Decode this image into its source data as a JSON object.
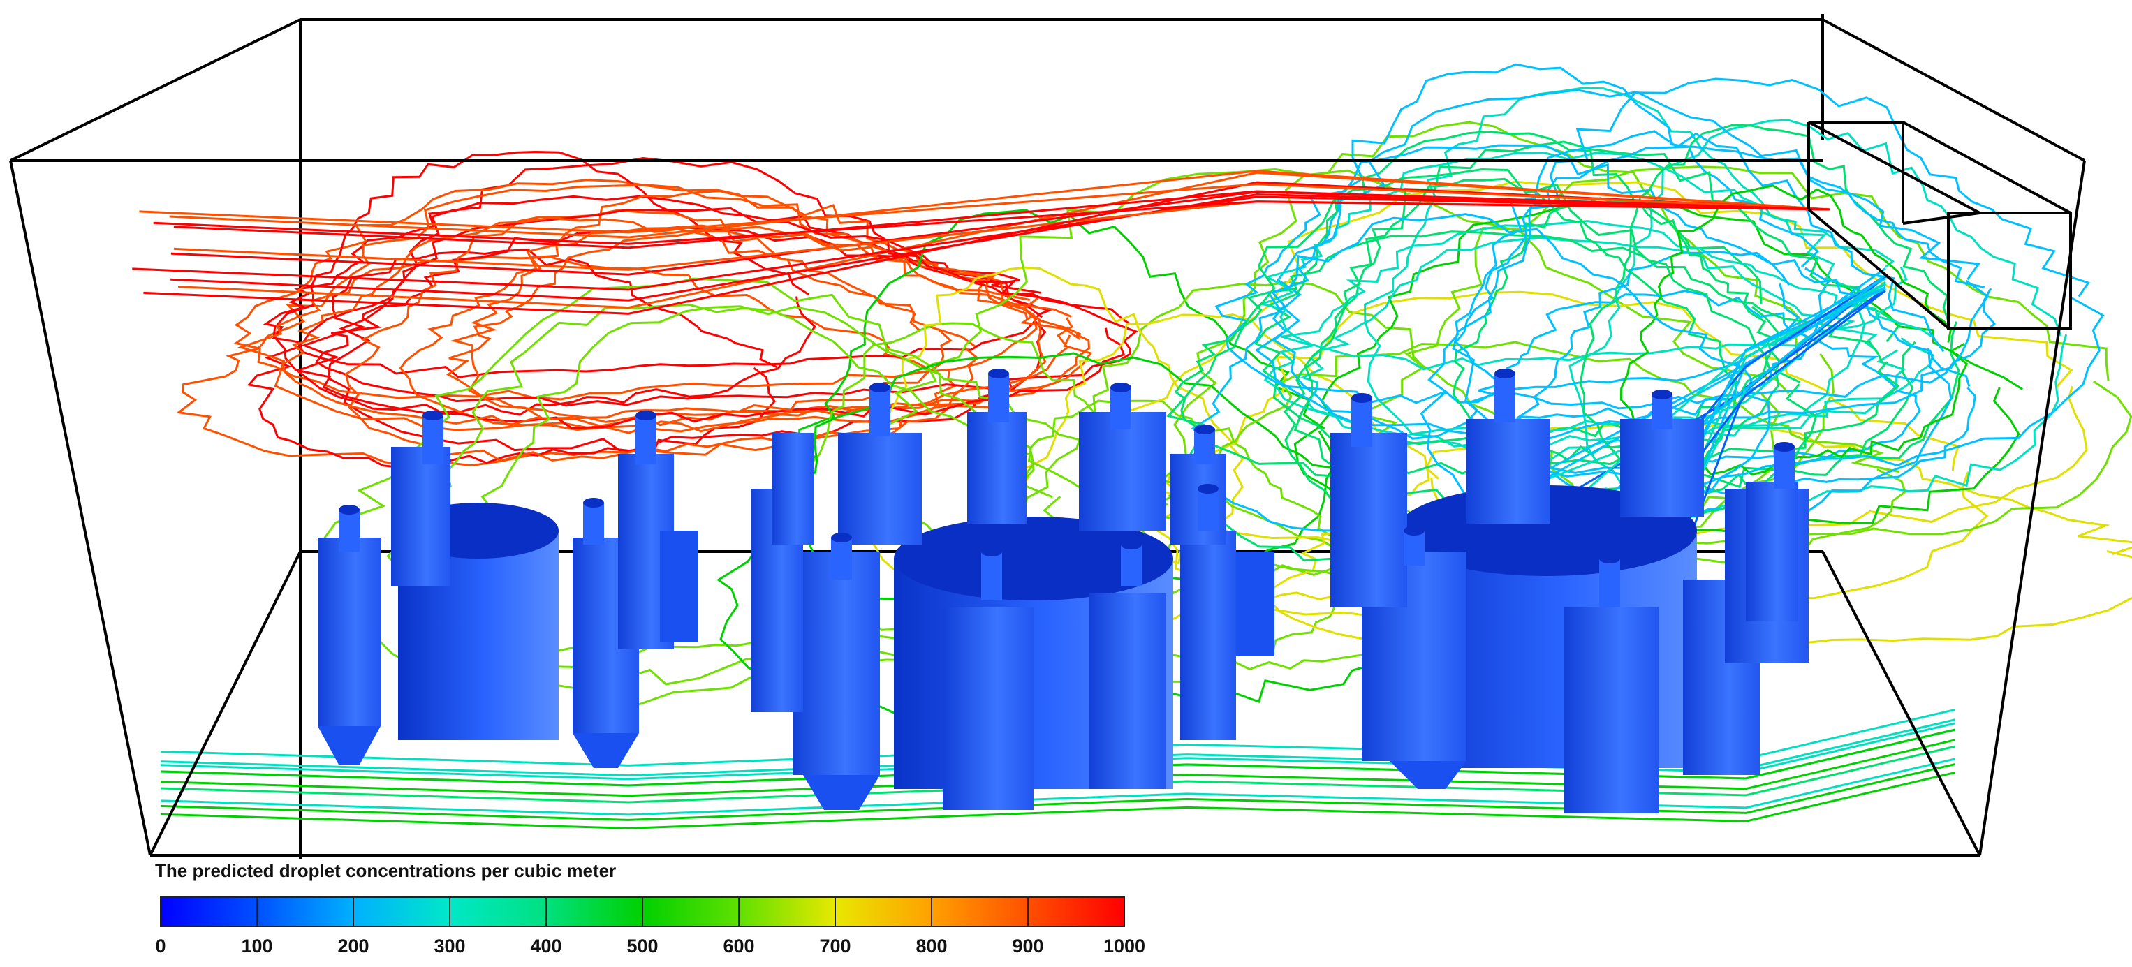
{
  "legend": {
    "title": "The predicted droplet concentrations per cubic meter",
    "ticks": [
      "0",
      "100",
      "200",
      "300",
      "400",
      "500",
      "600",
      "700",
      "800",
      "900",
      "1000"
    ],
    "colormap": [
      "#0000ff",
      "#0060ff",
      "#00c0ff",
      "#00e0c0",
      "#00e070",
      "#00d000",
      "#70e000",
      "#e0e000",
      "#ffa000",
      "#ff5000",
      "#ff0000"
    ]
  },
  "colors": {
    "box_edge": "#000000",
    "cylinder_dark": "#0a2fc4",
    "cylinder_mid": "#1a4ff0",
    "cylinder_light": "#4a82ff"
  }
}
